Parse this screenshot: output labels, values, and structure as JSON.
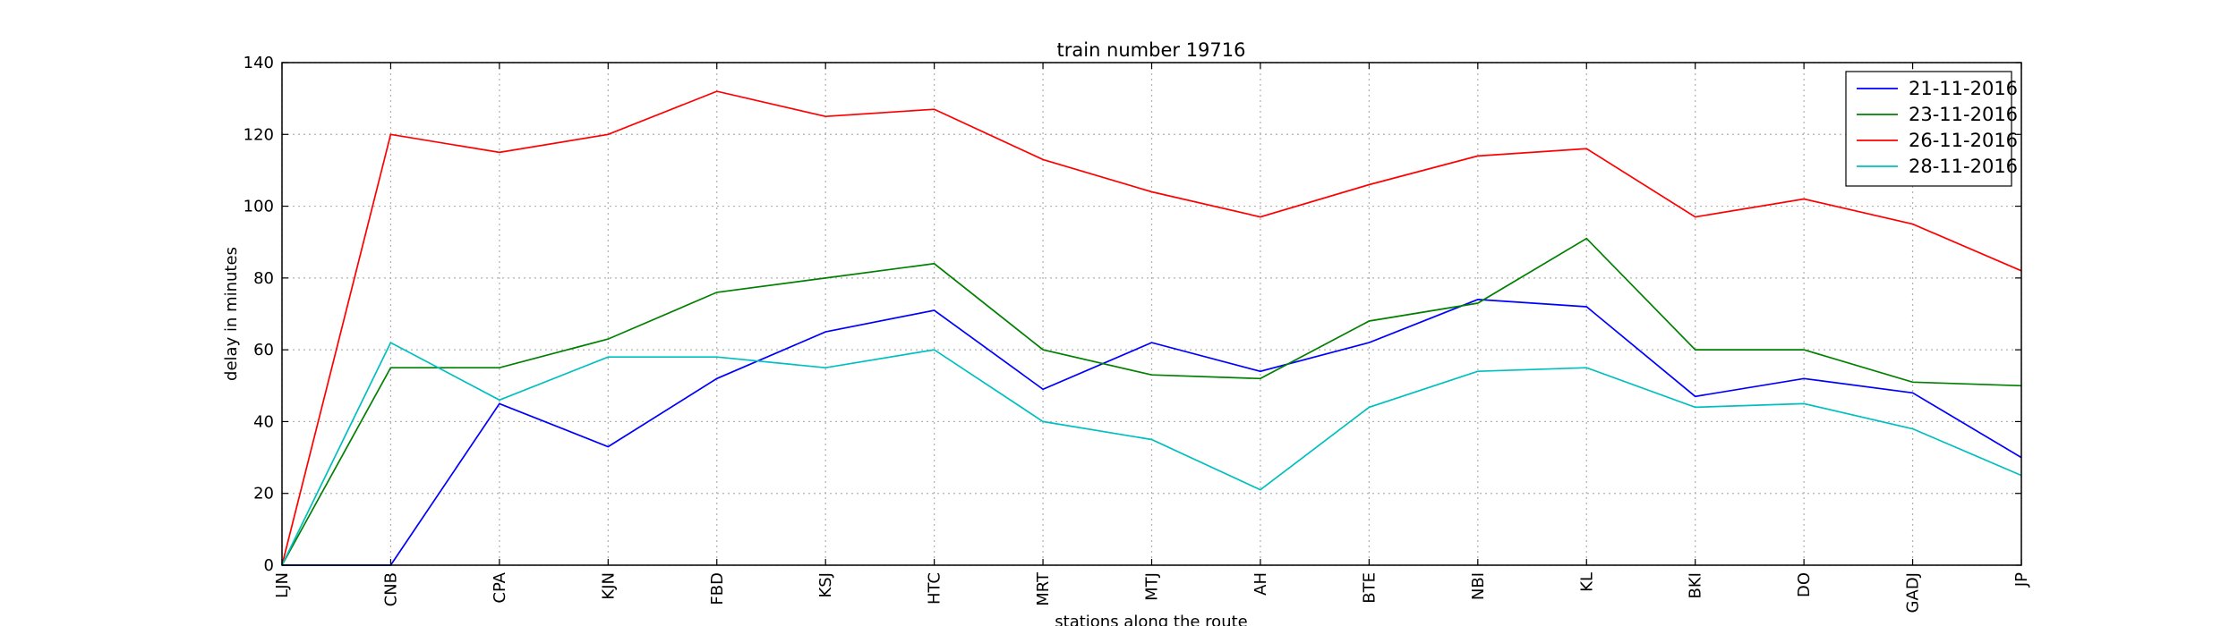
{
  "chart_data": {
    "type": "line",
    "title": "train number 19716",
    "xlabel": "stations along the route",
    "ylabel": "delay in minutes",
    "ylim": [
      0,
      140
    ],
    "yticks": [
      0,
      20,
      40,
      60,
      80,
      100,
      120,
      140
    ],
    "grid": true,
    "legend_position": "top-right",
    "categories": [
      "LJN",
      "CNB",
      "CPA",
      "KJN",
      "FBD",
      "KSJ",
      "HTC",
      "MRT",
      "MTJ",
      "AH",
      "BTE",
      "NBI",
      "KL",
      "BKI",
      "DO",
      "GADJ",
      "JP"
    ],
    "series": [
      {
        "name": "21-11-2016",
        "color": "#0000ff",
        "values": [
          0,
          0,
          45,
          33,
          52,
          65,
          71,
          49,
          62,
          54,
          62,
          74,
          72,
          47,
          52,
          48,
          30
        ]
      },
      {
        "name": "23-11-2016",
        "color": "#008000",
        "values": [
          0,
          55,
          55,
          63,
          76,
          80,
          84,
          60,
          53,
          52,
          68,
          73,
          91,
          60,
          60,
          51,
          50
        ]
      },
      {
        "name": "26-11-2016",
        "color": "#ff0000",
        "values": [
          0,
          120,
          115,
          120,
          132,
          125,
          127,
          113,
          104,
          97,
          106,
          114,
          116,
          97,
          102,
          95,
          82
        ]
      },
      {
        "name": "28-11-2016",
        "color": "#00bfbf",
        "values": [
          0,
          62,
          46,
          58,
          58,
          55,
          60,
          40,
          35,
          21,
          44,
          54,
          55,
          44,
          45,
          38,
          25
        ]
      }
    ]
  }
}
